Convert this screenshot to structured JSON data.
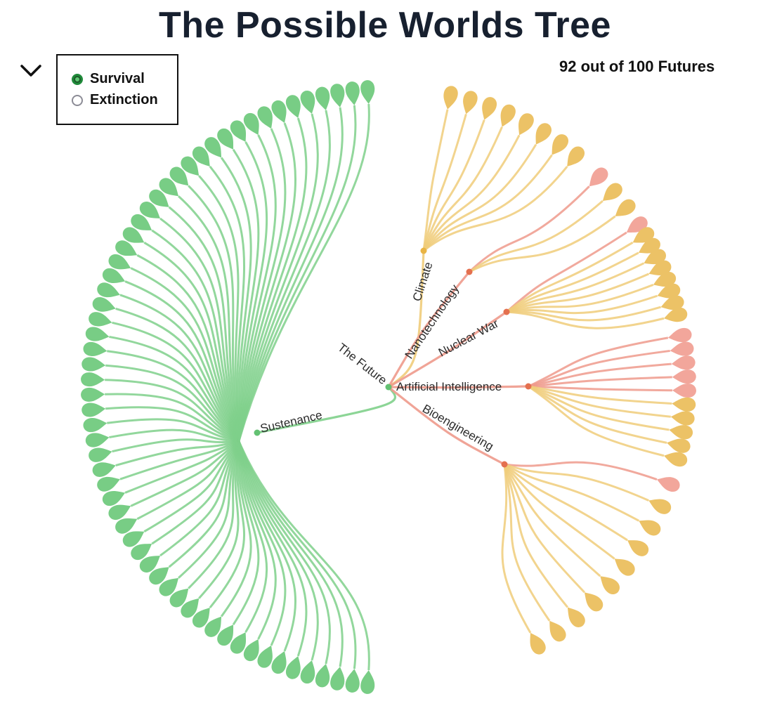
{
  "title": "The Possible Worlds Tree",
  "counter_text": "92 out of 100 Futures",
  "legend": {
    "items": [
      {
        "label": "Survival",
        "selected": true
      },
      {
        "label": "Extinction",
        "selected": false
      }
    ]
  },
  "icons": {
    "toggle": "chevron-down-icon"
  },
  "colors": {
    "survival": "#78cd85",
    "survival_link": "#7fd08b",
    "risk_survival": "#ecc266",
    "risk_survival_link": "#f0cc7a",
    "extinction": "#f2a69b",
    "extinction_link": "#ee9a8c",
    "hub_dot_extinction": "#e4704f",
    "hub_dot_climate": "#e9b444",
    "text": "#2b2b2b"
  },
  "tree": {
    "root": {
      "label": "The Future"
    },
    "branches": [
      {
        "key": "sustenance",
        "label": "Sustenance",
        "survival": 60,
        "extinction": 0
      },
      {
        "key": "climate",
        "label": "Climate",
        "survival": 8,
        "extinction": 0
      },
      {
        "key": "nanotechnology",
        "label": "Nanotechnology",
        "survival": 2,
        "extinction": 1
      },
      {
        "key": "nuclear_war",
        "label": "Nuclear War",
        "survival": 8,
        "extinction": 1
      },
      {
        "key": "artificial_intelligence",
        "label": "Artificial Intelligence",
        "survival": 5,
        "extinction": 5
      },
      {
        "key": "bioengineering",
        "label": "Bioengineering",
        "survival": 9,
        "extinction": 1
      }
    ]
  }
}
